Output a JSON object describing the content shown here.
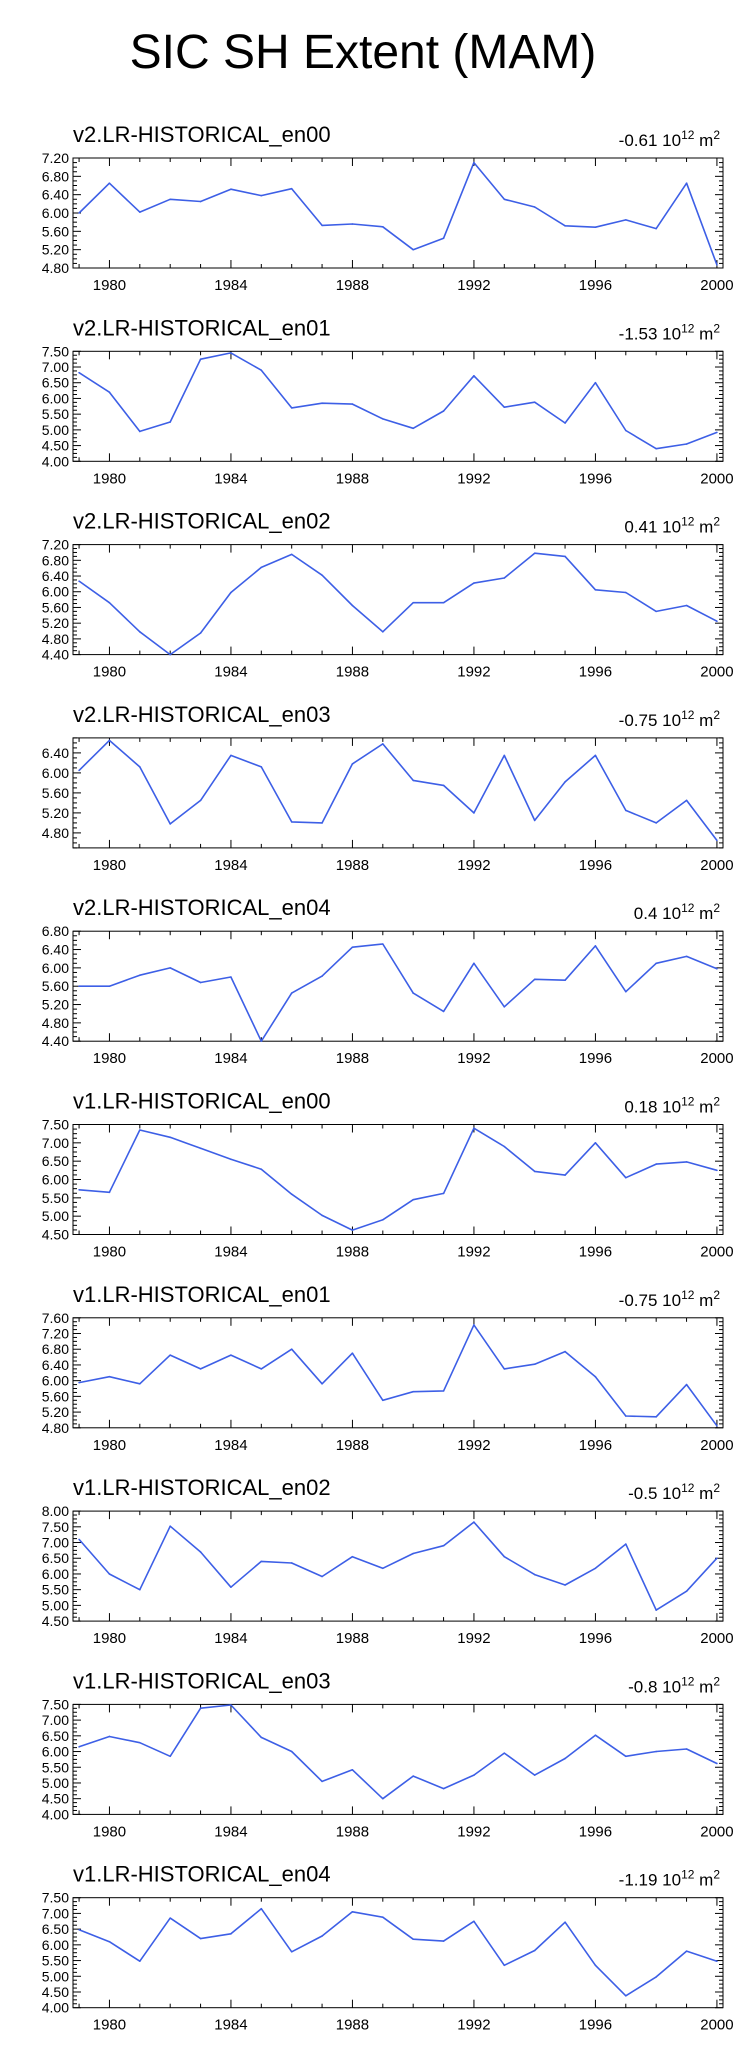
{
  "figure_title": "SIC SH Extent (MAM)",
  "line_color": "#3d5fe6",
  "trend_unit": "10",
  "trend_exp": "12",
  "trend_m": "m",
  "trend_m_exp": "2",
  "chart_data": [
    {
      "type": "line",
      "title": "v2.LR-HISTORICAL_en00",
      "trend_value": "-0.61",
      "x": [
        1979,
        1980,
        1981,
        1982,
        1983,
        1984,
        1985,
        1986,
        1987,
        1988,
        1989,
        1990,
        1991,
        1992,
        1993,
        1994,
        1995,
        1996,
        1997,
        1998,
        1999,
        2000
      ],
      "values": [
        6.0,
        6.65,
        6.02,
        6.3,
        6.25,
        6.52,
        6.38,
        6.53,
        5.73,
        5.76,
        5.7,
        5.2,
        5.45,
        7.1,
        6.3,
        6.13,
        5.72,
        5.69,
        5.85,
        5.66,
        6.65,
        4.87
      ],
      "ylim": [
        4.8,
        7.2
      ],
      "yticks": [
        "4.80",
        "5.20",
        "5.60",
        "6.00",
        "6.40",
        "6.80",
        "7.20"
      ],
      "xticks": [
        "1980",
        "1984",
        "1988",
        "1992",
        "1996",
        "2000"
      ],
      "xlim": [
        1978.8,
        2000.2
      ]
    },
    {
      "type": "line",
      "title": "v2.LR-HISTORICAL_en01",
      "trend_value": "-1.53",
      "x": [
        1979,
        1980,
        1981,
        1982,
        1983,
        1984,
        1985,
        1986,
        1987,
        1988,
        1989,
        1990,
        1991,
        1992,
        1993,
        1994,
        1995,
        1996,
        1997,
        1998,
        1999,
        2000
      ],
      "values": [
        6.82,
        6.2,
        4.95,
        5.25,
        7.25,
        7.45,
        6.9,
        5.7,
        5.85,
        5.82,
        5.35,
        5.05,
        5.6,
        6.72,
        5.72,
        5.88,
        5.22,
        6.5,
        4.98,
        4.4,
        4.55,
        4.92
      ],
      "ylim": [
        4.0,
        7.5
      ],
      "yticks": [
        "4.00",
        "4.50",
        "5.00",
        "5.50",
        "6.00",
        "6.50",
        "7.00",
        "7.50"
      ],
      "xticks": [
        "1980",
        "1984",
        "1988",
        "1992",
        "1996",
        "2000"
      ],
      "xlim": [
        1978.8,
        2000.2
      ]
    },
    {
      "type": "line",
      "title": "v2.LR-HISTORICAL_en02",
      "trend_value": "0.41",
      "x": [
        1979,
        1980,
        1981,
        1982,
        1983,
        1984,
        1985,
        1986,
        1987,
        1988,
        1989,
        1990,
        1991,
        1992,
        1993,
        1994,
        1995,
        1996,
        1997,
        1998,
        1999,
        2000
      ],
      "values": [
        6.27,
        5.72,
        4.98,
        4.4,
        4.95,
        5.98,
        6.62,
        6.95,
        6.42,
        5.65,
        4.98,
        5.72,
        5.72,
        6.22,
        6.35,
        6.98,
        6.9,
        6.05,
        5.98,
        5.5,
        5.65,
        5.25
      ],
      "ylim": [
        4.4,
        7.2
      ],
      "yticks": [
        "4.40",
        "4.80",
        "5.20",
        "5.60",
        "6.00",
        "6.40",
        "6.80",
        "7.20"
      ],
      "xticks": [
        "1980",
        "1984",
        "1988",
        "1992",
        "1996",
        "2000"
      ],
      "xlim": [
        1978.8,
        2000.2
      ]
    },
    {
      "type": "line",
      "title": "v2.LR-HISTORICAL_en03",
      "trend_value": "-0.75",
      "x": [
        1979,
        1980,
        1981,
        1982,
        1983,
        1984,
        1985,
        1986,
        1987,
        1988,
        1989,
        1990,
        1991,
        1992,
        1993,
        1994,
        1995,
        1996,
        1997,
        1998,
        1999,
        2000
      ],
      "values": [
        6.05,
        6.65,
        6.12,
        4.98,
        5.45,
        6.35,
        6.12,
        5.02,
        5.0,
        6.18,
        6.58,
        5.85,
        5.75,
        5.2,
        6.35,
        5.05,
        5.82,
        6.35,
        5.25,
        5.0,
        5.45,
        4.65
      ],
      "ylim": [
        4.5,
        6.7
      ],
      "yticks": [
        "4.80",
        "5.20",
        "5.60",
        "6.00",
        "6.40"
      ],
      "xticks": [
        "1980",
        "1984",
        "1988",
        "1992",
        "1996",
        "2000"
      ],
      "xlim": [
        1978.8,
        2000.2
      ]
    },
    {
      "type": "line",
      "title": "v2.LR-HISTORICAL_en04",
      "trend_value": "0.4",
      "x": [
        1979,
        1980,
        1981,
        1982,
        1983,
        1984,
        1985,
        1986,
        1987,
        1988,
        1989,
        1990,
        1991,
        1992,
        1993,
        1994,
        1995,
        1996,
        1997,
        1998,
        1999,
        2000
      ],
      "values": [
        5.6,
        5.6,
        5.84,
        6.0,
        5.68,
        5.8,
        4.4,
        5.45,
        5.82,
        6.45,
        6.52,
        5.45,
        5.05,
        6.1,
        5.15,
        5.75,
        5.73,
        6.48,
        5.48,
        6.1,
        6.25,
        5.98
      ],
      "ylim": [
        4.4,
        6.8
      ],
      "yticks": [
        "4.40",
        "4.80",
        "5.20",
        "5.60",
        "6.00",
        "6.40",
        "6.80"
      ],
      "xticks": [
        "1980",
        "1984",
        "1988",
        "1992",
        "1996",
        "2000"
      ],
      "xlim": [
        1978.8,
        2000.2
      ]
    },
    {
      "type": "line",
      "title": "v1.LR-HISTORICAL_en00",
      "trend_value": "0.18",
      "x": [
        1979,
        1980,
        1981,
        1982,
        1983,
        1984,
        1985,
        1986,
        1987,
        1988,
        1989,
        1990,
        1991,
        1992,
        1993,
        1994,
        1995,
        1996,
        1997,
        1998,
        1999,
        2000
      ],
      "values": [
        5.72,
        5.65,
        7.35,
        7.15,
        6.85,
        6.55,
        6.28,
        5.6,
        5.02,
        4.62,
        4.9,
        5.45,
        5.62,
        7.4,
        6.9,
        6.22,
        6.12,
        7.0,
        6.05,
        6.42,
        6.48,
        6.25
      ],
      "ylim": [
        4.5,
        7.5
      ],
      "yticks": [
        "4.50",
        "5.00",
        "5.50",
        "6.00",
        "6.50",
        "7.00",
        "7.50"
      ],
      "xticks": [
        "1980",
        "1984",
        "1988",
        "1992",
        "1996",
        "2000"
      ],
      "xlim": [
        1978.8,
        2000.2
      ]
    },
    {
      "type": "line",
      "title": "v1.LR-HISTORICAL_en01",
      "trend_value": "-0.75",
      "x": [
        1979,
        1980,
        1981,
        1982,
        1983,
        1984,
        1985,
        1986,
        1987,
        1988,
        1989,
        1990,
        1991,
        1992,
        1993,
        1994,
        1995,
        1996,
        1997,
        1998,
        1999,
        2000
      ],
      "values": [
        5.95,
        6.1,
        5.92,
        6.65,
        6.3,
        6.65,
        6.3,
        6.8,
        5.92,
        6.7,
        5.5,
        5.72,
        5.74,
        7.42,
        6.3,
        6.42,
        6.74,
        6.1,
        5.1,
        5.08,
        5.9,
        4.85
      ],
      "ylim": [
        4.8,
        7.6
      ],
      "yticks": [
        "4.80",
        "5.20",
        "5.60",
        "6.00",
        "6.40",
        "6.80",
        "7.20",
        "7.60"
      ],
      "xticks": [
        "1980",
        "1984",
        "1988",
        "1992",
        "1996",
        "2000"
      ],
      "xlim": [
        1978.8,
        2000.2
      ]
    },
    {
      "type": "line",
      "title": "v1.LR-HISTORICAL_en02",
      "trend_value": "-0.5",
      "x": [
        1979,
        1980,
        1981,
        1982,
        1983,
        1984,
        1985,
        1986,
        1987,
        1988,
        1989,
        1990,
        1991,
        1992,
        1993,
        1994,
        1995,
        1996,
        1997,
        1998,
        1999,
        2000
      ],
      "values": [
        7.1,
        6.0,
        5.5,
        7.52,
        6.7,
        5.58,
        6.4,
        6.35,
        5.92,
        6.55,
        6.18,
        6.65,
        6.9,
        7.65,
        6.55,
        5.98,
        5.65,
        6.18,
        6.95,
        4.85,
        5.45,
        6.5
      ],
      "ylim": [
        4.5,
        8.0
      ],
      "yticks": [
        "4.50",
        "5.00",
        "5.50",
        "6.00",
        "6.50",
        "7.00",
        "7.50",
        "8.00"
      ],
      "xticks": [
        "1980",
        "1984",
        "1988",
        "1992",
        "1996",
        "2000"
      ],
      "xlim": [
        1978.8,
        2000.2
      ]
    },
    {
      "type": "line",
      "title": "v1.LR-HISTORICAL_en03",
      "trend_value": "-0.8",
      "x": [
        1979,
        1980,
        1981,
        1982,
        1983,
        1984,
        1985,
        1986,
        1987,
        1988,
        1989,
        1990,
        1991,
        1992,
        1993,
        1994,
        1995,
        1996,
        1997,
        1998,
        1999,
        2000
      ],
      "values": [
        6.15,
        6.48,
        6.28,
        5.85,
        7.38,
        7.48,
        6.45,
        6.0,
        5.05,
        5.42,
        4.5,
        5.22,
        4.82,
        5.25,
        5.95,
        5.25,
        5.78,
        6.52,
        5.85,
        6.0,
        6.08,
        5.62
      ],
      "ylim": [
        4.0,
        7.5
      ],
      "yticks": [
        "4.00",
        "4.50",
        "5.00",
        "5.50",
        "6.00",
        "6.50",
        "7.00",
        "7.50"
      ],
      "xticks": [
        "1980",
        "1984",
        "1988",
        "1992",
        "1996",
        "2000"
      ],
      "xlim": [
        1978.8,
        2000.2
      ]
    },
    {
      "type": "line",
      "title": "v1.LR-HISTORICAL_en04",
      "trend_value": "-1.19",
      "x": [
        1979,
        1980,
        1981,
        1982,
        1983,
        1984,
        1985,
        1986,
        1987,
        1988,
        1989,
        1990,
        1991,
        1992,
        1993,
        1994,
        1995,
        1996,
        1997,
        1998,
        1999,
        2000
      ],
      "values": [
        6.48,
        6.1,
        5.48,
        6.85,
        6.2,
        6.35,
        7.15,
        5.78,
        6.28,
        7.05,
        6.88,
        6.18,
        6.12,
        6.75,
        5.35,
        5.82,
        6.72,
        5.35,
        4.38,
        4.98,
        5.8,
        5.48
      ],
      "ylim": [
        4.0,
        7.5
      ],
      "yticks": [
        "4.00",
        "4.50",
        "5.00",
        "5.50",
        "6.00",
        "6.50",
        "7.00",
        "7.50"
      ],
      "xticks": [
        "1980",
        "1984",
        "1988",
        "1992",
        "1996",
        "2000"
      ],
      "xlim": [
        1978.8,
        2000.2
      ]
    }
  ]
}
